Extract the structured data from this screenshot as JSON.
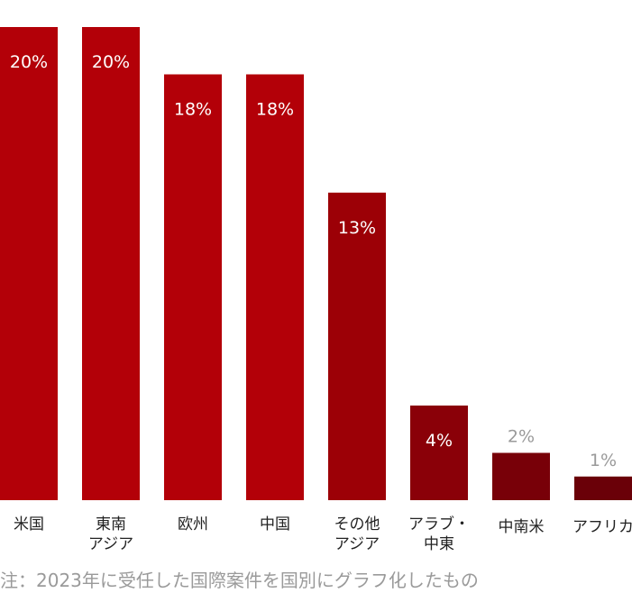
{
  "chart_data": {
    "type": "bar",
    "categories": [
      "米国",
      "東南\nアジア",
      "欧州",
      "中国",
      "その他\nアジア",
      "アラブ・\n中東",
      "中南米",
      "アフリカ"
    ],
    "values": [
      20,
      20,
      18,
      18,
      13,
      4,
      2,
      1
    ],
    "data_labels": [
      "20%",
      "20%",
      "18%",
      "18%",
      "13%",
      "4%",
      "2%",
      "1%"
    ],
    "bar_colors": [
      "#b30008",
      "#b30008",
      "#b30008",
      "#b30008",
      "#9c0006",
      "#8a0008",
      "#780008",
      "#6a0008"
    ],
    "ylim": [
      0,
      20
    ]
  },
  "note": "注：2023年に受任した国際案件を国別にグラフ化したもの"
}
